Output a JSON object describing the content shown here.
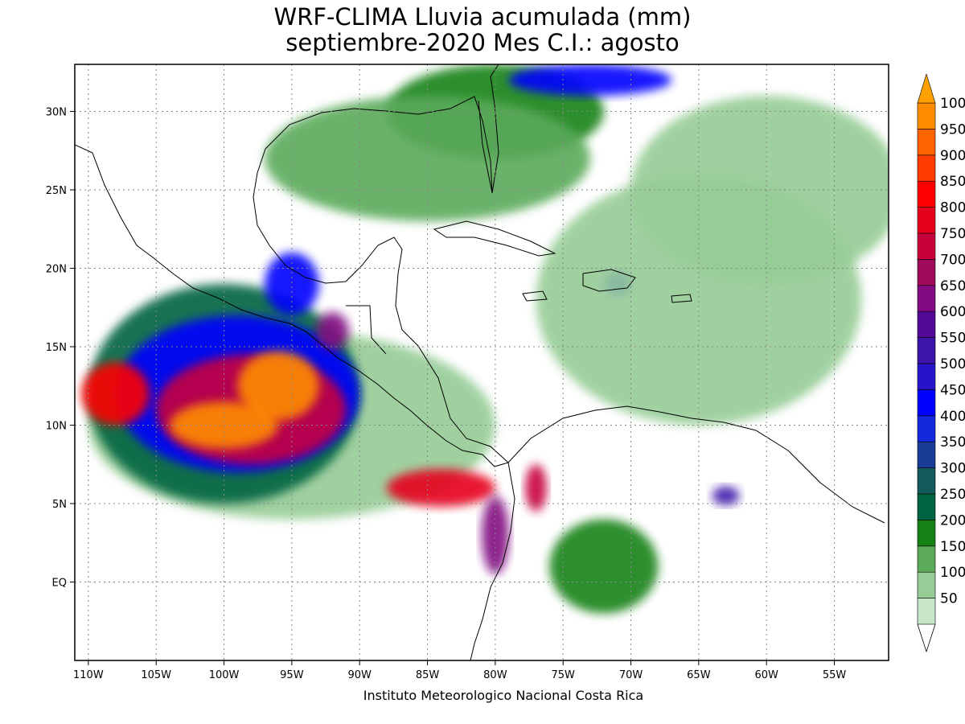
{
  "title_line1": "WRF-CLIMA Lluvia acumulada (mm)",
  "title_line2": "septiembre-2020 Mes C.I.: agosto",
  "credit": "Instituto Meteorologico Nacional Costa Rica",
  "map": {
    "lon_range": [
      -111,
      -51
    ],
    "lat_range": [
      -5,
      33
    ],
    "lon_ticks": [
      {
        "value": -110,
        "label": "110W"
      },
      {
        "value": -105,
        "label": "105W"
      },
      {
        "value": -100,
        "label": "100W"
      },
      {
        "value": -95,
        "label": "95W"
      },
      {
        "value": -90,
        "label": "90W"
      },
      {
        "value": -85,
        "label": "85W"
      },
      {
        "value": -80,
        "label": "80W"
      },
      {
        "value": -75,
        "label": "75W"
      },
      {
        "value": -70,
        "label": "70W"
      },
      {
        "value": -65,
        "label": "65W"
      },
      {
        "value": -60,
        "label": "60W"
      },
      {
        "value": -55,
        "label": "55W"
      }
    ],
    "lat_ticks": [
      {
        "value": 30,
        "label": "30N"
      },
      {
        "value": 25,
        "label": "25N"
      },
      {
        "value": 20,
        "label": "20N"
      },
      {
        "value": 15,
        "label": "15N"
      },
      {
        "value": 10,
        "label": "10N"
      },
      {
        "value": 5,
        "label": "5N"
      },
      {
        "value": 0,
        "label": "EQ"
      }
    ]
  },
  "colorbar": {
    "levels": [
      {
        "label": "50",
        "color": "#c8e6c8"
      },
      {
        "label": "100",
        "color": "#96cc96"
      },
      {
        "label": "150",
        "color": "#5aaa5a"
      },
      {
        "label": "200",
        "color": "#148214"
      },
      {
        "label": "250",
        "color": "#006440"
      },
      {
        "label": "300",
        "color": "#145a5a"
      },
      {
        "label": "350",
        "color": "#1a3c96"
      },
      {
        "label": "400",
        "color": "#1428dc"
      },
      {
        "label": "450",
        "color": "#0000ff"
      },
      {
        "label": "500",
        "color": "#2814c8"
      },
      {
        "label": "550",
        "color": "#3c14aa"
      },
      {
        "label": "600",
        "color": "#500a96"
      },
      {
        "label": "650",
        "color": "#820a82"
      },
      {
        "label": "700",
        "color": "#a00a5a"
      },
      {
        "label": "750",
        "color": "#c8003c"
      },
      {
        "label": "800",
        "color": "#e6001e"
      },
      {
        "label": "850",
        "color": "#ff0000"
      },
      {
        "label": "900",
        "color": "#ff3c00"
      },
      {
        "label": "950",
        "color": "#ff6400"
      },
      {
        "label": "1000",
        "color": "#ff8c00"
      }
    ],
    "over_color": "#ffa000"
  },
  "rain_blobs": [
    {
      "lon": -95,
      "lat": 10,
      "rx": 15,
      "ry": 6,
      "level": 1
    },
    {
      "lon": -100,
      "lat": 12,
      "rx": 10,
      "ry": 7,
      "level": 4
    },
    {
      "lon": -99,
      "lat": 12,
      "rx": 9,
      "ry": 5,
      "level": 8
    },
    {
      "lon": -98,
      "lat": 11,
      "rx": 7,
      "ry": 3.5,
      "level": 14
    },
    {
      "lon": -96,
      "lat": 12.5,
      "rx": 3,
      "ry": 2.2,
      "level": 19
    },
    {
      "lon": -100,
      "lat": 10,
      "rx": 4,
      "ry": 1.5,
      "level": 19
    },
    {
      "lon": -108,
      "lat": 12,
      "rx": 2.5,
      "ry": 2,
      "level": 16
    },
    {
      "lon": -84,
      "lat": 6,
      "rx": 4,
      "ry": 1.2,
      "level": 15
    },
    {
      "lon": -80,
      "lat": 3,
      "rx": 1,
      "ry": 2.5,
      "level": 12
    },
    {
      "lon": -77,
      "lat": 6,
      "rx": 0.8,
      "ry": 1.5,
      "level": 14
    },
    {
      "lon": -95,
      "lat": 19,
      "rx": 2,
      "ry": 2,
      "level": 8
    },
    {
      "lon": -92,
      "lat": 16,
      "rx": 1.2,
      "ry": 1.2,
      "level": 12
    },
    {
      "lon": -80,
      "lat": 30,
      "rx": 8,
      "ry": 3,
      "level": 3
    },
    {
      "lon": -73,
      "lat": 32,
      "rx": 6,
      "ry": 1,
      "level": 8
    },
    {
      "lon": -71,
      "lat": 19,
      "rx": 1,
      "ry": 0.8,
      "level": 8
    },
    {
      "lon": -63,
      "lat": 5.5,
      "rx": 1,
      "ry": 0.6,
      "level": 10
    },
    {
      "lon": -72,
      "lat": 1,
      "rx": 4,
      "ry": 3,
      "level": 3
    },
    {
      "lon": -85,
      "lat": 27,
      "rx": 12,
      "ry": 4,
      "level": 2
    },
    {
      "lon": -65,
      "lat": 18,
      "rx": 12,
      "ry": 8,
      "level": 1
    },
    {
      "lon": -60,
      "lat": 25,
      "rx": 10,
      "ry": 6,
      "level": 1
    }
  ]
}
